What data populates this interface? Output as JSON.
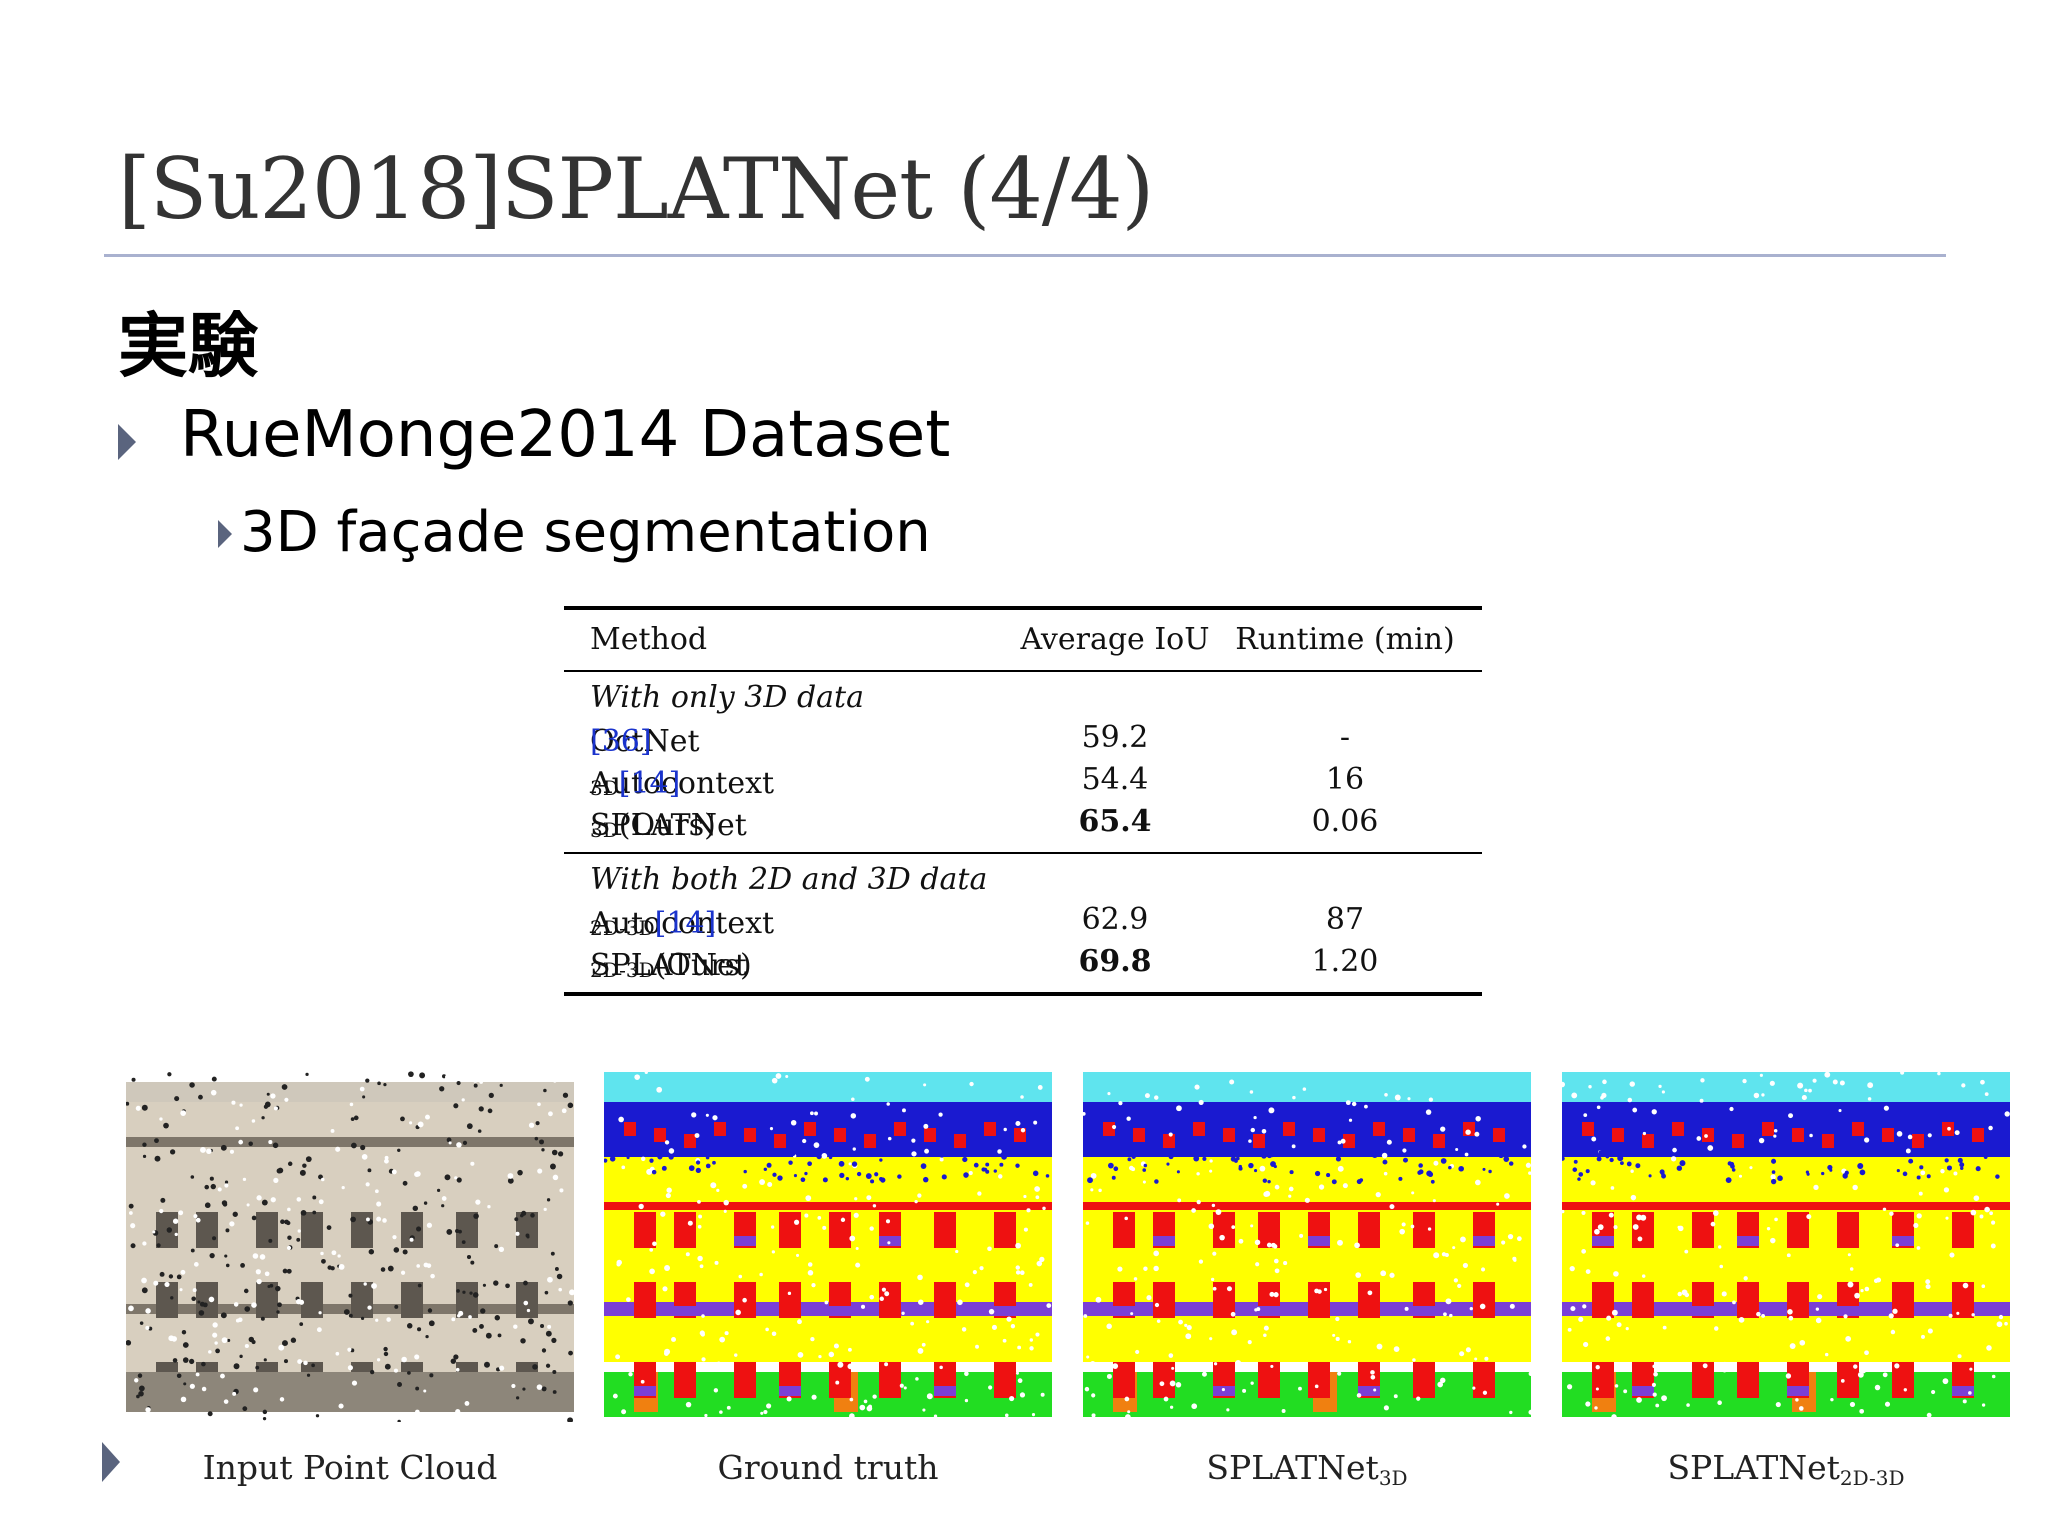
{
  "slide": {
    "title": "[Su2018]SPLATNet (4/4)",
    "heading": "実験",
    "bullet1": "RueMonge2014 Dataset",
    "bullet2": "3D façade segmentation"
  },
  "table": {
    "headers": [
      "Method",
      "Average IoU",
      "Runtime (min)"
    ],
    "group1": "With only 3D data",
    "group2": "With both 2D and 3D data",
    "rows": [
      {
        "name": "OctNet ",
        "sub": "",
        "ref": "[36]",
        "iou": "59.2",
        "runtime": "-",
        "best": false
      },
      {
        "name": "Autocontext",
        "sub": "3D",
        "ref": "[14]",
        "iou": "54.4",
        "runtime": "16",
        "best": false
      },
      {
        "name": "SPLATNet",
        "sub": "3D",
        "ref": "(Ours)",
        "iou": "65.4",
        "runtime": "0.06",
        "best": true
      },
      {
        "name": "Autocontext",
        "sub": "2D-3D",
        "ref": "[14]",
        "iou": "62.9",
        "runtime": "87",
        "best": false
      },
      {
        "name": "SPLATNet",
        "sub": "2D-3D",
        "ref": "(Ours)",
        "iou": "69.8",
        "runtime": "1.20",
        "best": true
      }
    ]
  },
  "figure": {
    "captions": [
      {
        "main": "Input Point Cloud",
        "sub": ""
      },
      {
        "main": "Ground truth",
        "sub": ""
      },
      {
        "main": "SPLATNet",
        "sub": "3D"
      },
      {
        "main": "SPLATNet",
        "sub": "2D-3D"
      }
    ],
    "palette": {
      "sky": "#5fe4ee",
      "roof": "#1a1ad0",
      "wall": "#ffff00",
      "window": "#ee1111",
      "balcony": "#7a3fd6",
      "shop": "#22dd22",
      "door": "#f08010",
      "stone": "#d8cfbf",
      "stone_dark": "#7e766a"
    }
  }
}
